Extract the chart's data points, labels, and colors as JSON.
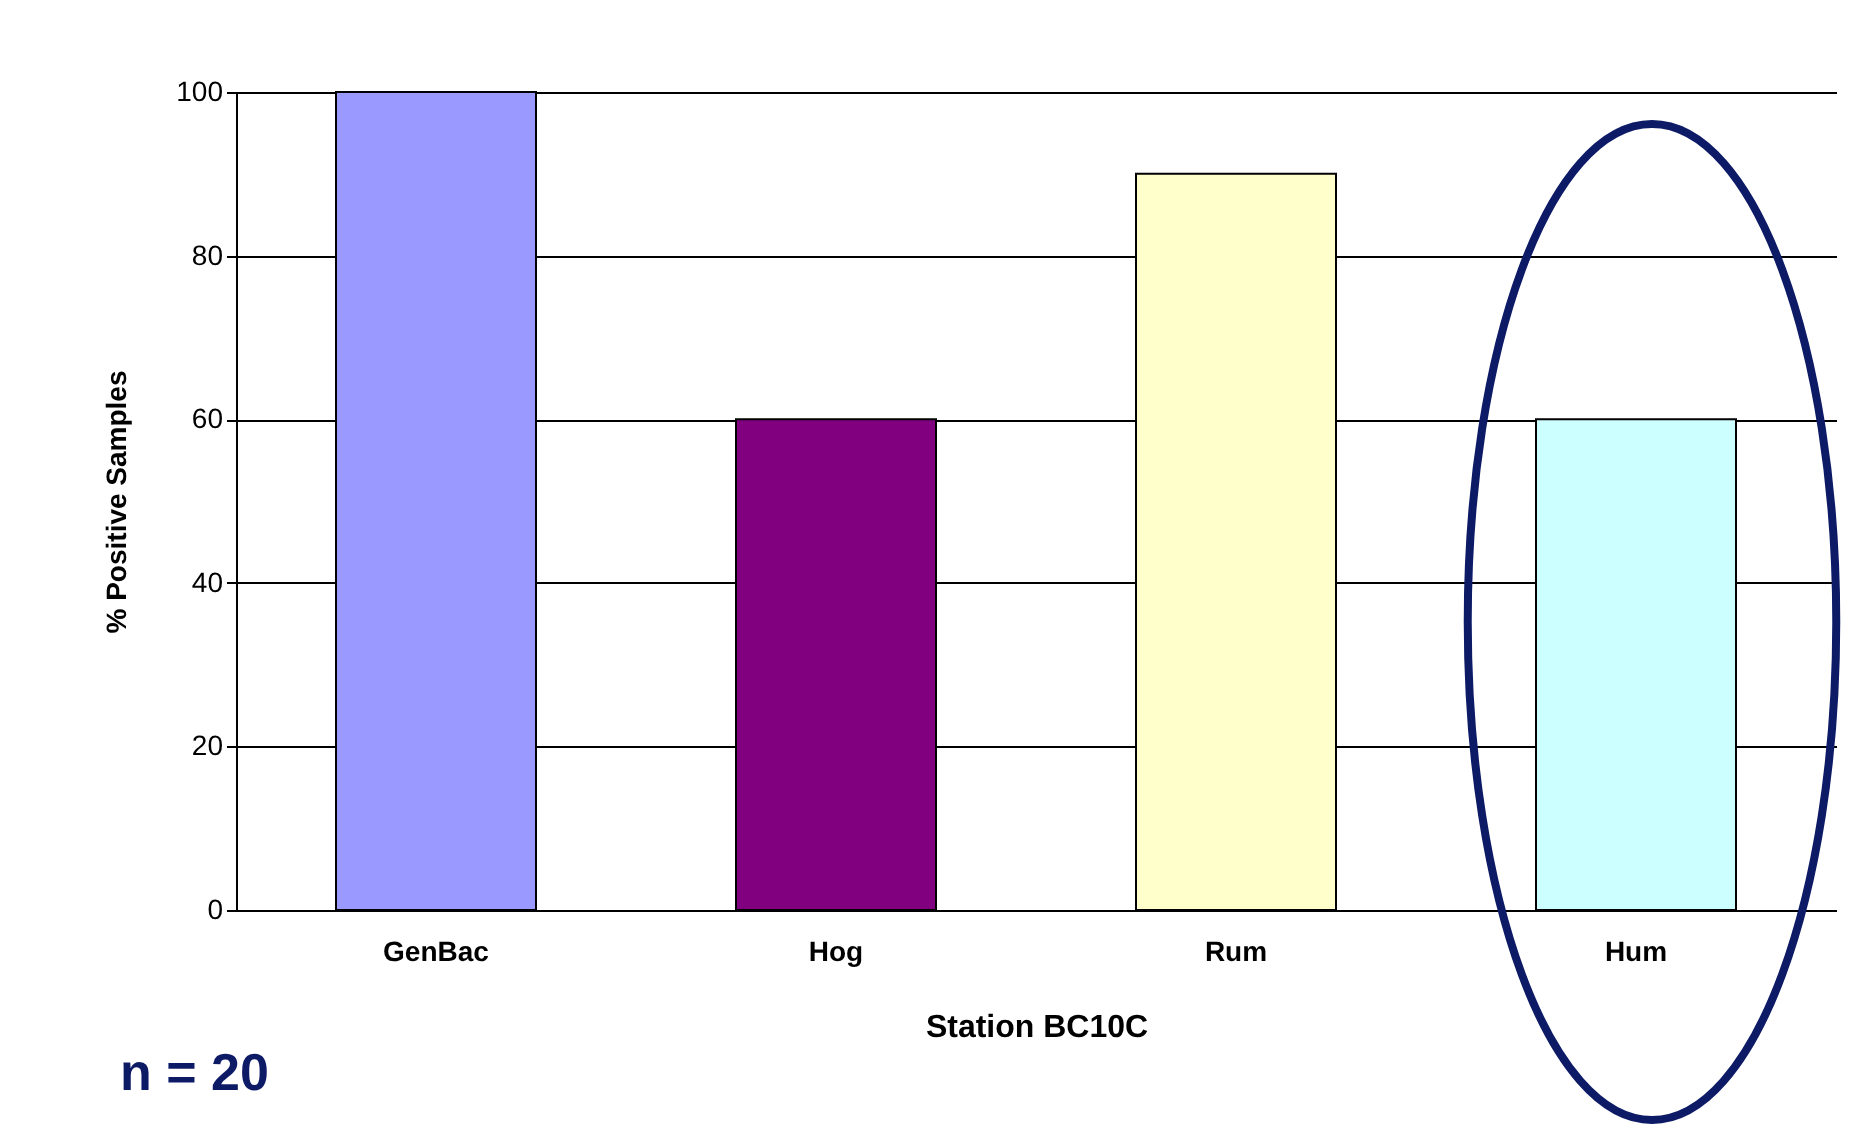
{
  "chart_data": {
    "type": "bar",
    "categories": [
      "GenBac",
      "Hog",
      "Rum",
      "Hum"
    ],
    "values": [
      100,
      60,
      90,
      60
    ],
    "colors": [
      "#9999ff",
      "#800080",
      "#ffffcc",
      "#ccffff"
    ],
    "xlabel": "Station BC10C",
    "ylabel": "% Positive Samples",
    "ylim": [
      0,
      100
    ],
    "yticks": [
      0,
      20,
      40,
      60,
      80,
      100
    ],
    "grid": "y",
    "annotations": [
      "n = 20"
    ]
  }
}
